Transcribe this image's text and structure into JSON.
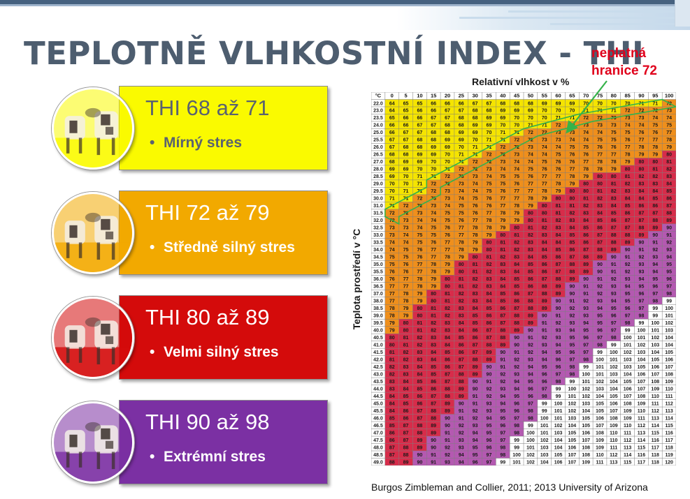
{
  "slide": {
    "title": "TEPLOTNĚ VLHKOSTNÍ INDEX - THI",
    "note_line1": "neplatná",
    "note_line2": "hranice 72",
    "source": "Burgos Zimbleman and Collier, 2011; 2013 University of Arizona"
  },
  "categories": [
    {
      "range": "THI 68 až 71",
      "label": "Mírný stres",
      "fill": "#fafa00",
      "text_color": "#5a6270",
      "icon": "cow-photo-icon"
    },
    {
      "range": "THI 72 až 79",
      "label": "Středně silný stres",
      "fill": "#f2a900",
      "text_color": "#ffffff",
      "icon": "cow-photo-icon"
    },
    {
      "range": "THI 80 až 89",
      "label": "Velmi silný stres",
      "fill": "#d40b0b",
      "text_color": "#ffffff",
      "icon": "cow-photo-icon"
    },
    {
      "range": "THI 90 až 98",
      "label": "Extrémní stres",
      "fill": "#7b30a3",
      "text_color": "#ffffff",
      "icon": "cow-photo-icon"
    }
  ],
  "chart_data": {
    "type": "table",
    "title": "Relativní vlhkost v %",
    "ylabel": "Teplota prostředí v °C",
    "corner_label": "°C",
    "columns": [
      0,
      5,
      10,
      15,
      20,
      25,
      30,
      35,
      40,
      45,
      50,
      55,
      60,
      65,
      70,
      75,
      80,
      85,
      90,
      95,
      100
    ],
    "rows": [
      [
        22.0,
        64,
        65,
        65,
        66,
        66,
        66,
        67,
        67,
        68,
        68,
        68,
        69,
        69,
        69,
        70,
        70,
        70,
        70,
        71,
        71,
        72
      ],
      [
        23.0,
        64,
        65,
        66,
        66,
        67,
        67,
        68,
        68,
        69,
        69,
        69,
        70,
        70,
        70,
        71,
        71,
        71,
        72,
        72,
        72,
        73
      ],
      [
        23.5,
        65,
        66,
        66,
        67,
        67,
        68,
        68,
        69,
        69,
        70,
        70,
        70,
        71,
        71,
        72,
        72,
        73,
        73,
        73,
        74,
        74
      ],
      [
        24.0,
        66,
        66,
        67,
        67,
        68,
        68,
        69,
        69,
        70,
        70,
        71,
        71,
        72,
        72,
        73,
        73,
        73,
        74,
        74,
        75,
        75
      ],
      [
        25.0,
        66,
        67,
        67,
        68,
        68,
        69,
        69,
        70,
        71,
        71,
        72,
        72,
        73,
        73,
        74,
        74,
        75,
        75,
        76,
        76,
        77
      ],
      [
        25.5,
        67,
        67,
        68,
        68,
        69,
        69,
        70,
        71,
        71,
        72,
        72,
        73,
        73,
        74,
        74,
        75,
        75,
        76,
        77,
        77,
        78
      ],
      [
        26.0,
        67,
        68,
        68,
        69,
        69,
        70,
        71,
        71,
        72,
        72,
        73,
        74,
        74,
        75,
        75,
        76,
        76,
        77,
        78,
        78,
        79
      ],
      [
        26.5,
        68,
        68,
        69,
        69,
        70,
        71,
        71,
        72,
        72,
        73,
        74,
        74,
        75,
        76,
        76,
        77,
        77,
        78,
        79,
        79,
        80
      ],
      [
        27.0,
        68,
        69,
        69,
        70,
        70,
        71,
        72,
        72,
        73,
        74,
        74,
        75,
        76,
        76,
        77,
        78,
        78,
        79,
        80,
        80,
        81
      ],
      [
        28.0,
        69,
        69,
        70,
        70,
        71,
        72,
        72,
        73,
        74,
        74,
        75,
        76,
        76,
        77,
        78,
        78,
        79,
        80,
        80,
        81,
        82
      ],
      [
        28.5,
        69,
        70,
        71,
        71,
        72,
        73,
        73,
        74,
        75,
        75,
        76,
        77,
        77,
        78,
        79,
        80,
        80,
        81,
        82,
        82,
        83
      ],
      [
        29.0,
        70,
        70,
        71,
        72,
        72,
        73,
        74,
        75,
        75,
        76,
        77,
        77,
        78,
        79,
        80,
        80,
        81,
        82,
        83,
        83,
        84
      ],
      [
        29.5,
        70,
        71,
        71,
        72,
        73,
        74,
        74,
        75,
        76,
        77,
        77,
        78,
        79,
        80,
        80,
        81,
        82,
        83,
        84,
        84,
        85
      ],
      [
        30.0,
        71,
        71,
        72,
        73,
        73,
        74,
        75,
        76,
        77,
        77,
        78,
        79,
        80,
        80,
        81,
        82,
        83,
        84,
        84,
        85,
        86
      ],
      [
        31.0,
        71,
        72,
        72,
        73,
        74,
        75,
        76,
        76,
        77,
        78,
        79,
        80,
        81,
        81,
        82,
        83,
        84,
        85,
        86,
        86,
        87
      ],
      [
        31.5,
        72,
        72,
        73,
        74,
        75,
        75,
        76,
        77,
        78,
        79,
        80,
        80,
        81,
        82,
        83,
        84,
        85,
        86,
        87,
        87,
        88
      ],
      [
        32.0,
        72,
        73,
        74,
        74,
        75,
        76,
        77,
        78,
        79,
        79,
        80,
        81,
        82,
        83,
        84,
        85,
        86,
        87,
        87,
        88,
        89
      ],
      [
        32.5,
        73,
        73,
        74,
        75,
        76,
        77,
        78,
        78,
        79,
        80,
        81,
        82,
        83,
        84,
        85,
        86,
        87,
        87,
        88,
        89,
        90
      ],
      [
        33.0,
        73,
        74,
        75,
        75,
        76,
        77,
        78,
        79,
        80,
        81,
        82,
        83,
        84,
        85,
        86,
        87,
        88,
        88,
        89,
        90,
        91
      ],
      [
        33.5,
        74,
        74,
        75,
        76,
        77,
        78,
        79,
        80,
        81,
        82,
        83,
        84,
        84,
        85,
        86,
        87,
        88,
        89,
        90,
        91,
        92
      ],
      [
        34.0,
        74,
        75,
        76,
        77,
        77,
        78,
        79,
        80,
        81,
        82,
        83,
        84,
        85,
        86,
        87,
        88,
        89,
        90,
        91,
        92,
        93
      ],
      [
        34.5,
        75,
        75,
        76,
        77,
        78,
        79,
        80,
        81,
        82,
        83,
        84,
        85,
        86,
        87,
        88,
        89,
        90,
        91,
        92,
        93,
        94
      ],
      [
        35.0,
        75,
        76,
        77,
        78,
        79,
        80,
        81,
        82,
        83,
        84,
        85,
        86,
        87,
        88,
        89,
        90,
        91,
        92,
        93,
        94,
        95
      ],
      [
        35.5,
        76,
        76,
        77,
        78,
        79,
        80,
        81,
        82,
        83,
        84,
        85,
        86,
        87,
        88,
        89,
        90,
        91,
        92,
        93,
        94,
        95
      ],
      [
        36.0,
        76,
        77,
        78,
        79,
        80,
        81,
        82,
        83,
        84,
        85,
        86,
        87,
        88,
        89,
        90,
        91,
        92,
        93,
        94,
        95,
        96
      ],
      [
        36.5,
        77,
        77,
        78,
        79,
        80,
        81,
        82,
        83,
        84,
        85,
        86,
        88,
        89,
        90,
        91,
        92,
        93,
        94,
        95,
        96,
        97
      ],
      [
        37.0,
        77,
        78,
        79,
        80,
        81,
        82,
        83,
        84,
        85,
        86,
        87,
        88,
        89,
        90,
        91,
        92,
        93,
        95,
        96,
        97,
        98
      ],
      [
        38.0,
        77,
        78,
        79,
        80,
        81,
        82,
        83,
        84,
        85,
        86,
        88,
        89,
        90,
        91,
        92,
        93,
        94,
        95,
        97,
        98,
        99
      ],
      [
        38.5,
        78,
        79,
        80,
        81,
        82,
        83,
        84,
        85,
        86,
        87,
        88,
        89,
        90,
        92,
        93,
        94,
        95,
        96,
        97,
        99,
        100
      ],
      [
        39.0,
        78,
        79,
        80,
        81,
        82,
        83,
        85,
        86,
        87,
        88,
        89,
        90,
        91,
        92,
        93,
        95,
        96,
        97,
        98,
        99,
        101
      ],
      [
        39.5,
        79,
        80,
        81,
        82,
        83,
        84,
        85,
        86,
        87,
        88,
        89,
        91,
        92,
        93,
        94,
        95,
        97,
        98,
        99,
        100,
        102
      ],
      [
        40.0,
        79,
        80,
        81,
        82,
        83,
        84,
        86,
        87,
        88,
        89,
        90,
        91,
        93,
        94,
        95,
        96,
        97,
        99,
        100,
        101,
        103
      ],
      [
        40.5,
        80,
        81,
        82,
        83,
        84,
        85,
        86,
        87,
        88,
        90,
        91,
        92,
        93,
        95,
        96,
        97,
        98,
        100,
        101,
        102,
        104
      ],
      [
        41.0,
        80,
        81,
        82,
        83,
        84,
        86,
        87,
        88,
        89,
        90,
        92,
        93,
        94,
        95,
        97,
        98,
        99,
        101,
        102,
        103,
        104
      ],
      [
        41.5,
        81,
        82,
        83,
        84,
        85,
        86,
        87,
        89,
        90,
        91,
        92,
        94,
        95,
        96,
        97,
        99,
        100,
        102,
        103,
        104,
        105
      ],
      [
        42.0,
        81,
        82,
        83,
        84,
        86,
        87,
        88,
        89,
        91,
        92,
        93,
        94,
        96,
        97,
        98,
        100,
        101,
        103,
        104,
        105,
        106
      ],
      [
        42.5,
        82,
        83,
        84,
        85,
        86,
        87,
        89,
        90,
        91,
        92,
        94,
        95,
        96,
        98,
        99,
        101,
        102,
        103,
        105,
        106,
        107
      ],
      [
        43.0,
        82,
        83,
        84,
        85,
        87,
        88,
        89,
        90,
        92,
        93,
        94,
        96,
        97,
        98,
        100,
        101,
        103,
        104,
        106,
        107,
        108
      ],
      [
        43.5,
        83,
        84,
        85,
        86,
        87,
        88,
        90,
        91,
        92,
        94,
        95,
        96,
        98,
        99,
        101,
        102,
        104,
        105,
        107,
        108,
        109
      ],
      [
        44.0,
        83,
        84,
        85,
        86,
        88,
        89,
        90,
        92,
        93,
        94,
        96,
        97,
        99,
        100,
        102,
        103,
        104,
        106,
        107,
        109,
        110
      ],
      [
        44.5,
        84,
        85,
        86,
        87,
        88,
        89,
        91,
        92,
        94,
        95,
        96,
        98,
        99,
        101,
        102,
        104,
        105,
        107,
        108,
        110,
        111
      ],
      [
        45.0,
        84,
        85,
        86,
        87,
        89,
        90,
        91,
        93,
        94,
        96,
        97,
        99,
        100,
        102,
        103,
        105,
        106,
        108,
        109,
        111,
        112
      ],
      [
        45.5,
        84,
        86,
        87,
        88,
        89,
        91,
        92,
        93,
        95,
        96,
        98,
        99,
        101,
        102,
        104,
        105,
        107,
        109,
        110,
        112,
        113
      ],
      [
        46.0,
        85,
        86,
        87,
        88,
        90,
        91,
        92,
        94,
        95,
        97,
        98,
        100,
        101,
        103,
        105,
        106,
        108,
        109,
        111,
        113,
        114
      ],
      [
        46.5,
        85,
        87,
        88,
        89,
        90,
        92,
        93,
        95,
        96,
        98,
        99,
        101,
        102,
        104,
        105,
        107,
        109,
        110,
        112,
        114,
        115
      ],
      [
        47.0,
        86,
        87,
        88,
        89,
        91,
        92,
        94,
        95,
        97,
        98,
        100,
        101,
        103,
        105,
        106,
        108,
        110,
        111,
        113,
        115,
        116
      ],
      [
        47.5,
        86,
        87,
        89,
        90,
        91,
        93,
        94,
        96,
        97,
        99,
        100,
        102,
        104,
        105,
        107,
        109,
        110,
        112,
        114,
        116,
        117
      ],
      [
        48.0,
        87,
        88,
        89,
        90,
        92,
        93,
        95,
        96,
        98,
        99,
        101,
        103,
        104,
        106,
        108,
        109,
        111,
        113,
        115,
        117,
        118
      ],
      [
        48.5,
        87,
        88,
        90,
        91,
        92,
        94,
        95,
        97,
        98,
        100,
        102,
        103,
        105,
        107,
        108,
        110,
        112,
        114,
        116,
        118,
        119
      ],
      [
        49.0,
        88,
        89,
        90,
        91,
        93,
        94,
        96,
        97,
        99,
        101,
        102,
        104,
        106,
        107,
        109,
        111,
        113,
        115,
        117,
        118,
        120
      ]
    ],
    "color_bands": [
      {
        "max": 71,
        "color": "#f5e400"
      },
      {
        "max": 79,
        "color": "#ef8f1c"
      },
      {
        "max": 89,
        "color": "#d72c4a"
      },
      {
        "max": 98,
        "color": "#b459b1"
      },
      {
        "max": 999,
        "color": "#ffffff"
      }
    ],
    "highlight_threshold": 72,
    "highlight_color": "#35b34a"
  }
}
